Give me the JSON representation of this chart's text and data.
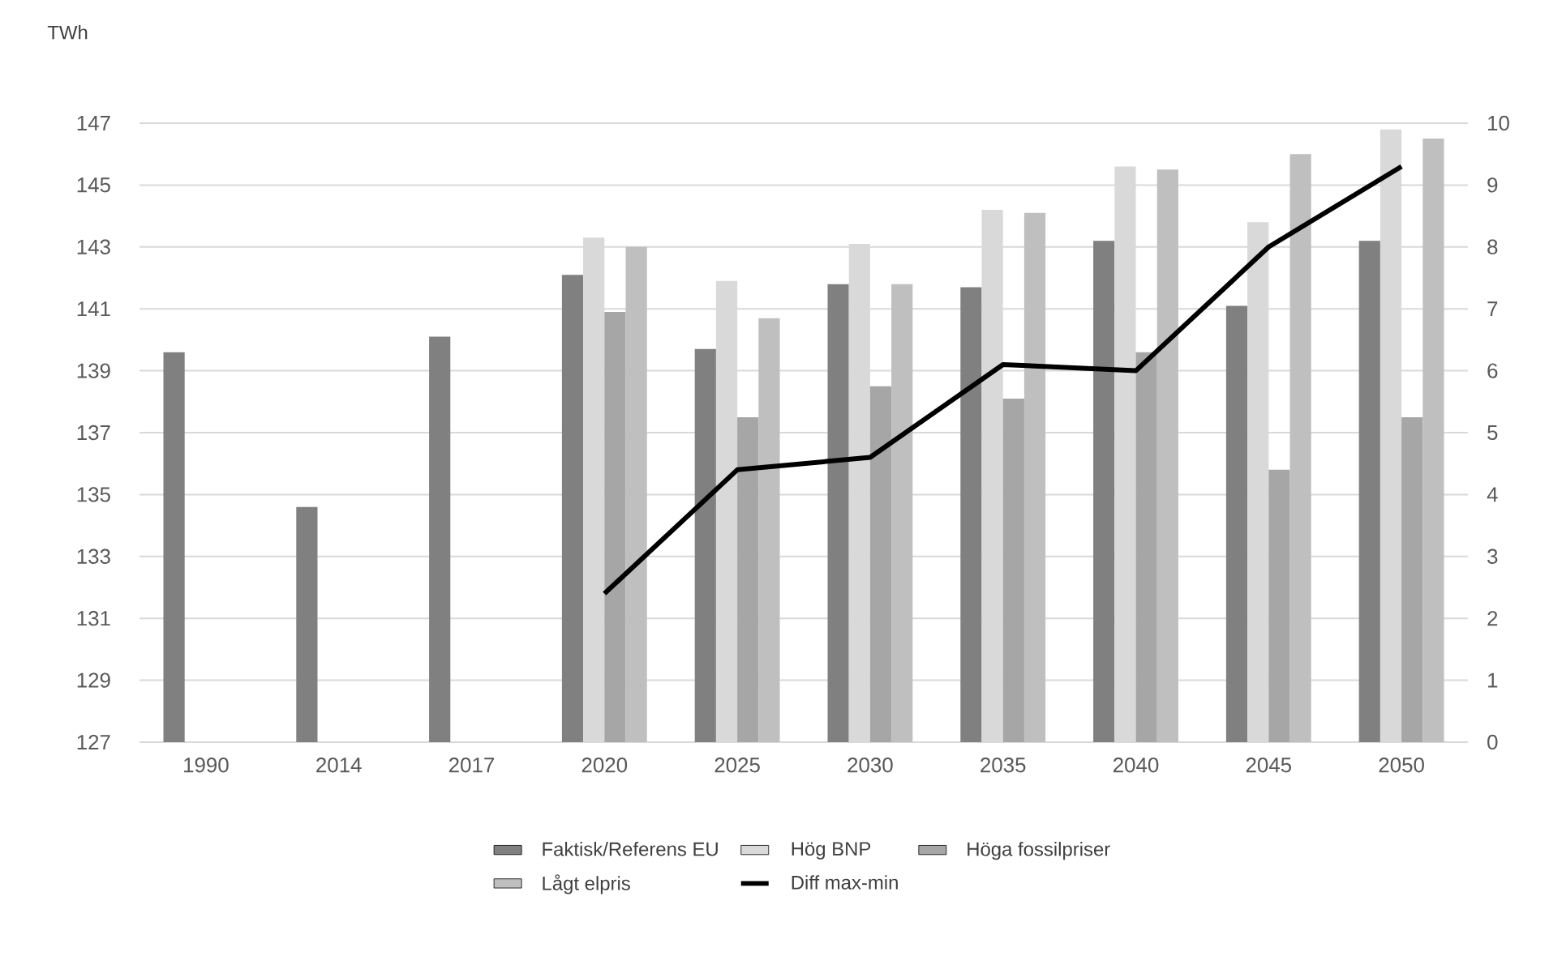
{
  "chart_data": {
    "type": "bar",
    "ylabel": "TWh",
    "categories": [
      "1990",
      "2014",
      "2017",
      "2020",
      "2025",
      "2030",
      "2035",
      "2040",
      "2045",
      "2050"
    ],
    "series": [
      {
        "name": "Faktisk/Referens EU",
        "color": "#808080",
        "values": [
          139.6,
          134.6,
          140.1,
          142.1,
          139.7,
          141.8,
          141.7,
          143.2,
          141.1,
          143.2
        ]
      },
      {
        "name": "Hög BNP",
        "color": "#d9d9d9",
        "values": [
          null,
          null,
          null,
          143.3,
          141.9,
          143.1,
          144.2,
          145.6,
          143.8,
          146.8
        ]
      },
      {
        "name": "Höga fossilpriser",
        "color": "#a6a6a6",
        "values": [
          null,
          null,
          null,
          140.9,
          137.5,
          138.5,
          138.1,
          139.6,
          135.8,
          137.5
        ]
      },
      {
        "name": "Lågt elpris",
        "color": "#bfbfbf",
        "values": [
          null,
          null,
          null,
          143.0,
          140.7,
          141.8,
          144.1,
          145.5,
          146.0,
          146.5
        ]
      },
      {
        "name": "Diff max-min",
        "type": "line",
        "axis": "y2",
        "color": "#000000",
        "values": [
          null,
          null,
          null,
          2.4,
          4.4,
          4.6,
          6.1,
          6.0,
          8.0,
          9.3
        ]
      }
    ],
    "ylim": [
      127,
      147
    ],
    "yticks": [
      127,
      129,
      131,
      133,
      135,
      137,
      139,
      141,
      143,
      145,
      147
    ],
    "y2lim": [
      0,
      10
    ],
    "y2ticks": [
      0,
      1,
      2,
      3,
      4,
      5,
      6,
      7,
      8,
      9,
      10
    ],
    "grid": "y",
    "legend": "bottom",
    "marker": "none",
    "line_style": "solid"
  }
}
